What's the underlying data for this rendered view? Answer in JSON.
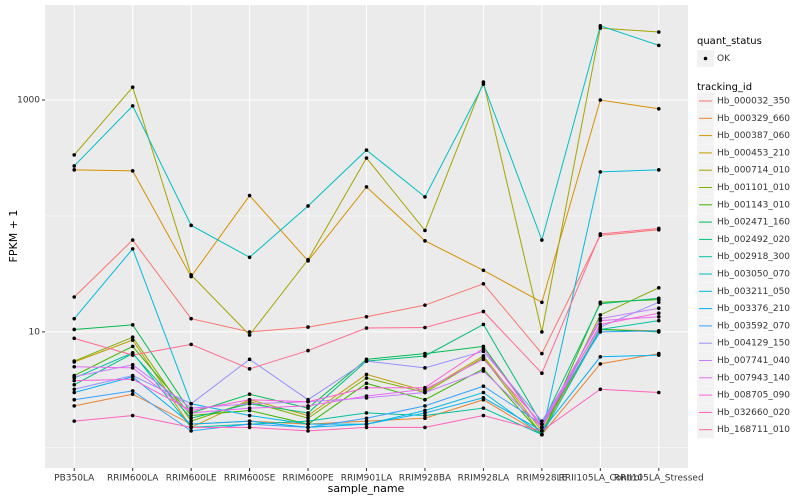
{
  "chart_data": {
    "type": "line",
    "x_label": "sample_name",
    "y_label": "FPKM + 1",
    "log_y": true,
    "grid": true,
    "panel_color": "#EBEBEB",
    "point_color": "#000000",
    "ylim": [
      0.67,
      6600
    ],
    "yticks": [
      10,
      1000
    ],
    "minor_yticks": [
      1,
      100
    ],
    "point_legend_title": "quant_status",
    "point_legend_label": "OK",
    "legend_title": "tracking_id",
    "categories": [
      "PB350LA",
      "RRIM600LA",
      "RRIM600LE",
      "RRIM600SE",
      "RRIM600PE",
      "RRIM901LA",
      "RRIM928BA",
      "RRIM928LA",
      "RRIM928LE",
      "RRII105LA_Control",
      "RRII105LA_Stressed"
    ],
    "series": [
      {
        "name": "Hb_000032_350",
        "color": "#F8766D",
        "values": [
          20,
          62,
          13,
          10,
          11,
          13.5,
          17,
          26,
          6.5,
          68,
          76
        ]
      },
      {
        "name": "Hb_000329_660",
        "color": "#EA8331",
        "values": [
          2.3,
          2.9,
          1.6,
          1.7,
          1.6,
          1.7,
          1.8,
          2.6,
          1.3,
          5.3,
          6.5
        ]
      },
      {
        "name": "Hb_000387_060",
        "color": "#D89000",
        "values": [
          250,
          245,
          30,
          150,
          41,
          178,
          61,
          34,
          18,
          1000,
          840
        ]
      },
      {
        "name": "Hb_000453_210",
        "color": "#C09B00",
        "values": [
          5.5,
          8.5,
          1.5,
          2.6,
          1.9,
          4.3,
          3.1,
          6.2,
          1.4,
          10.5,
          10.2
        ]
      },
      {
        "name": "Hb_000714_010",
        "color": "#A3A500",
        "values": [
          336,
          1290,
          31,
          9.4,
          42,
          316,
          75,
          1430,
          10,
          4170,
          3860
        ]
      },
      {
        "name": "Hb_001101_010",
        "color": "#7CAE00",
        "values": [
          5.6,
          9.0,
          1.7,
          2.5,
          1.8,
          4.0,
          3.0,
          6.0,
          1.3,
          14,
          24
        ]
      },
      {
        "name": "Hb_001143_010",
        "color": "#39B600",
        "values": [
          4.2,
          7.5,
          1.9,
          2.1,
          1.6,
          3.6,
          2.6,
          4.8,
          1.3,
          18,
          19
        ]
      },
      {
        "name": "Hb_002471_160",
        "color": "#00BB4E",
        "values": [
          10.5,
          11.5,
          2.0,
          2.9,
          2.2,
          5.8,
          6.5,
          7.5,
          1.5,
          10.5,
          10.0
        ]
      },
      {
        "name": "Hb_002492_020",
        "color": "#00BF7D",
        "values": [
          3.5,
          6.5,
          1.8,
          2.4,
          2.0,
          5.6,
          6.2,
          11.6,
          1.6,
          17.5,
          19.5
        ]
      },
      {
        "name": "Hb_002918_300",
        "color": "#00C1A3",
        "values": [
          4.0,
          6.6,
          1.5,
          1.6,
          1.7,
          2.0,
          1.9,
          2.2,
          1.3,
          10.5,
          12.5
        ]
      },
      {
        "name": "Hb_003050_070",
        "color": "#00BFC4",
        "values": [
          270,
          890,
          83,
          44,
          122,
          370,
          146,
          1370,
          62,
          4370,
          2960
        ]
      },
      {
        "name": "Hb_003211_050",
        "color": "#00BAE0",
        "values": [
          13,
          52,
          2.4,
          1.9,
          1.6,
          1.6,
          2.1,
          3.0,
          1.3,
          240,
          250
        ]
      },
      {
        "name": "Hb_003376_210",
        "color": "#00B0F6",
        "values": [
          3.0,
          4.1,
          1.6,
          1.7,
          1.5,
          1.6,
          2.0,
          2.7,
          1.4,
          6.1,
          6.3
        ]
      },
      {
        "name": "Hb_003592_070",
        "color": "#35A2FF",
        "values": [
          2.6,
          3.1,
          1.4,
          1.6,
          1.5,
          1.8,
          2.3,
          3.4,
          1.6,
          10.0,
          10.2
        ]
      },
      {
        "name": "Hb_004129_150",
        "color": "#9590FF",
        "values": [
          3.2,
          4.2,
          2.4,
          5.8,
          2.6,
          5.6,
          4.9,
          6.8,
          1.7,
          11.0,
          18
        ]
      },
      {
        "name": "Hb_007741_040",
        "color": "#C77CFF",
        "values": [
          4.1,
          5.2,
          2.2,
          2.4,
          2.5,
          2.7,
          3.0,
          4.6,
          1.5,
          13,
          16
        ]
      },
      {
        "name": "Hb_007943_140",
        "color": "#E76BF3",
        "values": [
          5.0,
          4.9,
          2.0,
          2.2,
          2.3,
          2.8,
          3.2,
          5.8,
          1.6,
          12.5,
          13.5
        ]
      },
      {
        "name": "Hb_008705_090",
        "color": "#FA62DB",
        "values": [
          3.8,
          3.9,
          2.1,
          2.6,
          2.5,
          3.3,
          3.3,
          7.2,
          1.5,
          11.6,
          14.5
        ]
      },
      {
        "name": "Hb_032660_020",
        "color": "#FF62BC",
        "values": [
          1.7,
          1.9,
          1.5,
          1.5,
          1.4,
          1.5,
          1.5,
          1.9,
          1.4,
          3.2,
          3.0
        ]
      },
      {
        "name": "Hb_168711_010",
        "color": "#FF6C91",
        "values": [
          8.8,
          6.3,
          7.8,
          4.8,
          6.9,
          10.8,
          10.9,
          15,
          4.4,
          70,
          78
        ]
      }
    ]
  }
}
